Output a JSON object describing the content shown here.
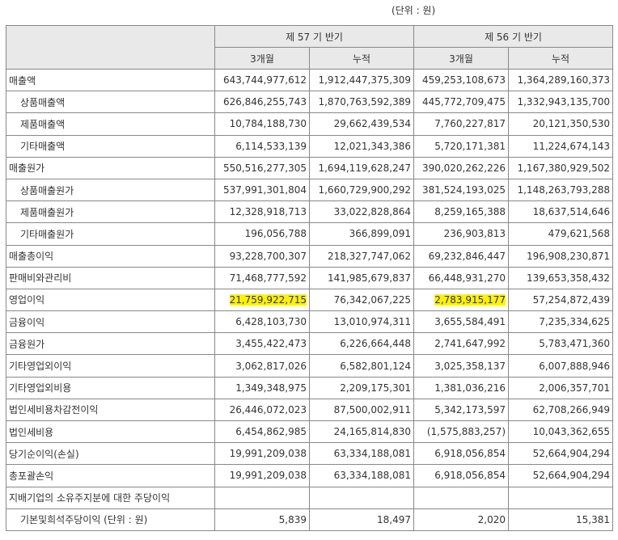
{
  "unit_note": "(단위 : 원)",
  "header": {
    "period_57": "제 57 기 반기",
    "period_56": "제 56 기 반기",
    "col_3m": "3개월",
    "col_cum": "누적"
  },
  "rows": [
    {
      "label": "매출액",
      "indent": false,
      "v": [
        "643,744,977,612",
        "1,912,447,375,309",
        "459,253,108,673",
        "1,364,289,160,373"
      ]
    },
    {
      "label": "상품매출액",
      "indent": true,
      "v": [
        "626,846,255,743",
        "1,870,763,592,389",
        "445,772,709,475",
        "1,332,943,135,700"
      ]
    },
    {
      "label": "제품매출액",
      "indent": true,
      "v": [
        "10,784,188,730",
        "29,662,439,534",
        "7,760,227,817",
        "20,121,350,530"
      ]
    },
    {
      "label": "기타매출액",
      "indent": true,
      "v": [
        "6,114,533,139",
        "12,021,343,386",
        "5,720,171,381",
        "11,224,674,143"
      ]
    },
    {
      "label": "매출원가",
      "indent": false,
      "v": [
        "550,516,277,305",
        "1,694,119,628,247",
        "390,020,262,226",
        "1,167,380,929,502"
      ]
    },
    {
      "label": "상품매출원가",
      "indent": true,
      "v": [
        "537,991,301,804",
        "1,660,729,900,292",
        "381,524,193,025",
        "1,148,263,793,288"
      ]
    },
    {
      "label": "제품매출원가",
      "indent": true,
      "v": [
        "12,328,918,713",
        "33,022,828,864",
        "8,259,165,388",
        "18,637,514,646"
      ]
    },
    {
      "label": "기타매출원가",
      "indent": true,
      "v": [
        "196,056,788",
        "366,899,091",
        "236,903,813",
        "479,621,568"
      ]
    },
    {
      "label": "매출총이익",
      "indent": false,
      "v": [
        "93,228,700,307",
        "218,327,747,062",
        "69,232,846,447",
        "196,908,230,871"
      ]
    },
    {
      "label": "판매비와관리비",
      "indent": false,
      "v": [
        "71,468,777,592",
        "141,985,679,837",
        "66,448,931,270",
        "139,653,358,432"
      ]
    },
    {
      "label": "영업이익",
      "indent": false,
      "v": [
        "21,759,922,715",
        "76,342,067,225",
        "2,783,915,177",
        "57,254,872,439"
      ],
      "hl": [
        true,
        false,
        true,
        false
      ]
    },
    {
      "label": "금융이익",
      "indent": false,
      "v": [
        "6,428,103,730",
        "13,010,974,311",
        "3,655,584,491",
        "7,235,334,625"
      ]
    },
    {
      "label": "금융원가",
      "indent": false,
      "v": [
        "3,455,422,473",
        "6,226,664,448",
        "2,741,647,992",
        "5,783,471,360"
      ]
    },
    {
      "label": "기타영업외이익",
      "indent": false,
      "v": [
        "3,062,817,026",
        "6,582,801,124",
        "3,025,358,137",
        "6,007,888,946"
      ]
    },
    {
      "label": "기타영업외비용",
      "indent": false,
      "v": [
        "1,349,348,975",
        "2,209,175,301",
        "1,381,036,216",
        "2,006,357,701"
      ]
    },
    {
      "label": "법인세비용차감전이익",
      "indent": false,
      "v": [
        "26,446,072,023",
        "87,500,002,911",
        "5,342,173,597",
        "62,708,266,949"
      ]
    },
    {
      "label": "법인세비용",
      "indent": false,
      "v": [
        "6,454,862,985",
        "24,165,814,830",
        "(1,575,883,257)",
        "10,043,362,655"
      ]
    },
    {
      "label": "당기순이익(손실)",
      "indent": false,
      "v": [
        "19,991,209,038",
        "63,334,188,081",
        "6,918,056,854",
        "52,664,904,294"
      ]
    },
    {
      "label": "총포괄손익",
      "indent": false,
      "v": [
        "19,991,209,038",
        "63,334,188,081",
        "6,918,056,854",
        "52,664,904,294"
      ]
    },
    {
      "label": "지배기업의 소유주지분에 대한 주당이익",
      "indent": false,
      "v": [
        "",
        "",
        "",
        ""
      ]
    },
    {
      "label": "기본및희석주당이익 (단위 : 원)",
      "indent": true,
      "v": [
        "5,839",
        "18,497",
        "2,020",
        "15,381"
      ]
    }
  ],
  "colors": {
    "highlight": "#fff200",
    "header_bg": "#e9e9e9",
    "border": "#888888"
  }
}
